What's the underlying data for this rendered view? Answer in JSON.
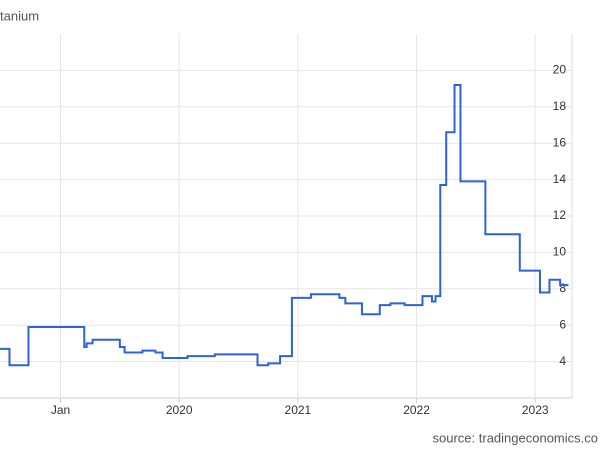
{
  "chart_data": {
    "type": "line",
    "step": true,
    "title": "tanium",
    "source": "source: tradingeconomics.co",
    "x": [
      2018.49,
      2018.57,
      2018.73,
      2019.2,
      2019.22,
      2019.27,
      2019.5,
      2019.54,
      2019.69,
      2019.8,
      2019.86,
      2020.07,
      2020.3,
      2020.66,
      2020.75,
      2020.85,
      2020.95,
      2021.11,
      2021.35,
      2021.4,
      2021.54,
      2021.69,
      2021.78,
      2021.9,
      2022.05,
      2022.13,
      2022.16,
      2022.2,
      2022.25,
      2022.32,
      2022.37,
      2022.58,
      2022.87,
      2023.04,
      2023.12,
      2023.21,
      2023.28
    ],
    "series": [
      {
        "color": "#2e62d9",
        "values": [
          4.7,
          3.8,
          5.9,
          4.8,
          5.0,
          5.2,
          4.8,
          4.5,
          4.6,
          4.5,
          4.2,
          4.3,
          4.4,
          3.8,
          3.9,
          4.3,
          7.5,
          7.7,
          7.5,
          7.2,
          6.6,
          7.1,
          7.2,
          7.1,
          7.6,
          7.3,
          7.6,
          13.7,
          16.6,
          19.2,
          13.9,
          11.0,
          9.0,
          7.8,
          8.5,
          8.2,
          8.2
        ]
      }
    ],
    "xlim": [
      2018.49,
      2023.31
    ],
    "xticks": [
      {
        "value": 2019,
        "label": "Jan"
      },
      2020,
      2021,
      2022,
      2023
    ],
    "ylim": [
      2,
      22
    ],
    "yticks": [
      4,
      6,
      8,
      10,
      12,
      14,
      16,
      18,
      20
    ],
    "grid": true
  }
}
